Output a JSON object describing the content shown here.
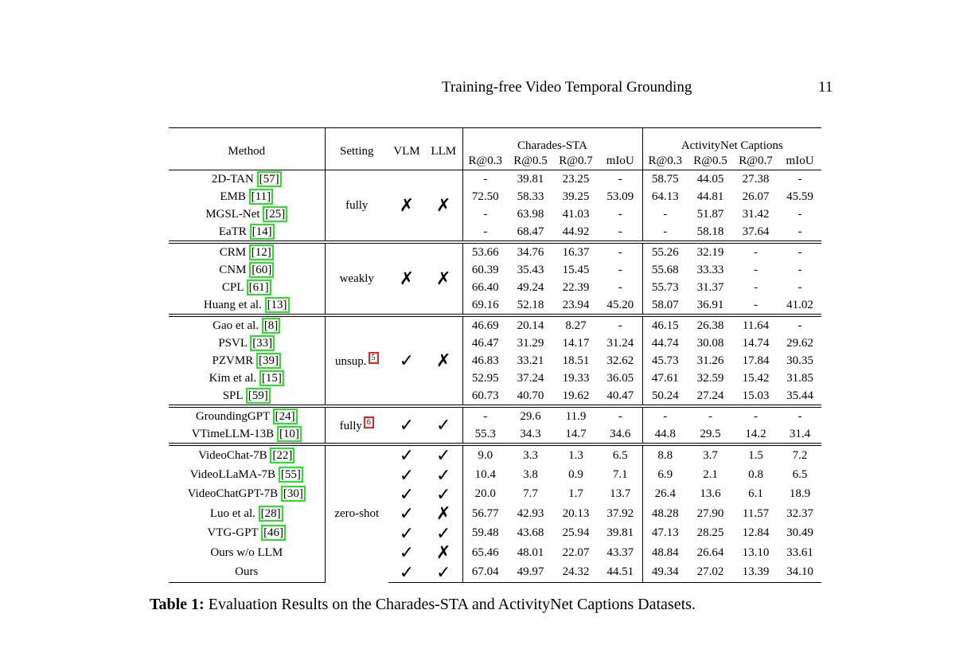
{
  "header": {
    "title": "Training-free Video Temporal Grounding",
    "page": "11"
  },
  "table": {
    "columns": {
      "method": "Method",
      "setting": "Setting",
      "vlm": "VLM",
      "llm": "LLM"
    },
    "groups": [
      {
        "name": "Charades-STA",
        "metrics": [
          "R@0.3",
          "R@0.5",
          "R@0.7",
          "mIoU"
        ]
      },
      {
        "name": "ActivityNet Captions",
        "metrics": [
          "R@0.3",
          "R@0.5",
          "R@0.7",
          "mIoU"
        ]
      }
    ],
    "sections": [
      {
        "setting": "fully",
        "vlm": "✗",
        "llm": "✗",
        "rows": [
          {
            "method": "2D-TAN",
            "ref": "[57]",
            "values": [
              "-",
              "39.81",
              "23.25",
              "-",
              "58.75",
              "44.05",
              "27.38",
              "-"
            ],
            "bold": []
          },
          {
            "method": "EMB",
            "ref": "[11]",
            "values": [
              "72.50",
              "58.33",
              "39.25",
              "53.09",
              "64.13",
              "44.81",
              "26.07",
              "45.59"
            ],
            "bold": [
              0,
              3,
              4,
              7
            ]
          },
          {
            "method": "MGSL-Net",
            "ref": "[25]",
            "values": [
              "-",
              "63.98",
              "41.03",
              "-",
              "-",
              "51.87",
              "31.42",
              "-"
            ],
            "bold": []
          },
          {
            "method": "EaTR",
            "ref": "[14]",
            "values": [
              "-",
              "68.47",
              "44.92",
              "-",
              "-",
              "58.18",
              "37.64",
              "-"
            ],
            "bold": [
              1,
              2,
              5,
              6
            ]
          }
        ]
      },
      {
        "setting": "weakly",
        "vlm": "✗",
        "llm": "✗",
        "rows": [
          {
            "method": "CRM",
            "ref": "[12]",
            "values": [
              "53.66",
              "34.76",
              "16.37",
              "-",
              "55.26",
              "32.19",
              "-",
              "-"
            ],
            "bold": []
          },
          {
            "method": "CNM",
            "ref": "[60]",
            "values": [
              "60.39",
              "35.43",
              "15.45",
              "-",
              "55.68",
              "33.33",
              "-",
              "-"
            ],
            "bold": []
          },
          {
            "method": "CPL",
            "ref": "[61]",
            "values": [
              "66.40",
              "49.24",
              "22.39",
              "-",
              "55.73",
              "31.37",
              "-",
              "-"
            ],
            "bold": []
          },
          {
            "method": "Huang et al.",
            "ref": "[13]",
            "values": [
              "69.16",
              "52.18",
              "23.94",
              "45.20",
              "58.07",
              "36.91",
              "-",
              "41.02"
            ],
            "bold": [
              0,
              1,
              2,
              3,
              4,
              5,
              7
            ]
          }
        ]
      },
      {
        "setting": "unsup.",
        "setting_ref": "5",
        "vlm": "✓",
        "llm": "✗",
        "rows": [
          {
            "method": "Gao et al.",
            "ref": "[8]",
            "values": [
              "46.69",
              "20.14",
              "8.27",
              "-",
              "46.15",
              "26.38",
              "11.64",
              "-"
            ],
            "bold": []
          },
          {
            "method": "PSVL",
            "ref": "[33]",
            "values": [
              "46.47",
              "31.29",
              "14.17",
              "31.24",
              "44.74",
              "30.08",
              "14.74",
              "29.62"
            ],
            "bold": []
          },
          {
            "method": "PZVMR",
            "ref": "[39]",
            "values": [
              "46.83",
              "33.21",
              "18.51",
              "32.62",
              "45.73",
              "31.26",
              "17.84",
              "30.35"
            ],
            "bold": [
              6
            ]
          },
          {
            "method": "Kim et al.",
            "ref": "[15]",
            "values": [
              "52.95",
              "37.24",
              "19.33",
              "36.05",
              "47.61",
              "32.59",
              "15.42",
              "31.85"
            ],
            "bold": [
              5
            ]
          },
          {
            "method": "SPL",
            "ref": "[59]",
            "values": [
              "60.73",
              "40.70",
              "19.62",
              "40.47",
              "50.24",
              "27.24",
              "15.03",
              "35.44"
            ],
            "bold": [
              0,
              1,
              2,
              3,
              4,
              7
            ]
          }
        ]
      },
      {
        "setting": "fully",
        "setting_ref": "6",
        "vlm": "✓",
        "llm": "✓",
        "rows": [
          {
            "method": "GroundingGPT",
            "ref": "[24]",
            "values": [
              "-",
              "29.6",
              "11.9",
              "-",
              "-",
              "-",
              "-",
              "-"
            ],
            "bold": []
          },
          {
            "method": "VTimeLLM-13B",
            "ref": "[10]",
            "values": [
              "55.3",
              "34.3",
              "14.7",
              "34.6",
              "44.8",
              "29.5",
              "14.2",
              "31.4"
            ],
            "bold": [
              0,
              1,
              2,
              3,
              4,
              5,
              6,
              7
            ]
          }
        ]
      },
      {
        "setting": "zero-shot",
        "rows": [
          {
            "method": "VideoChat-7B",
            "ref": "[22]",
            "vlm": "✓",
            "llm": "✓",
            "values": [
              "9.0",
              "3.3",
              "1.3",
              "6.5",
              "8.8",
              "3.7",
              "1.5",
              "7.2"
            ],
            "bold": []
          },
          {
            "method": "VideoLLaMA-7B",
            "ref": "[55]",
            "vlm": "✓",
            "llm": "✓",
            "values": [
              "10.4",
              "3.8",
              "0.9",
              "7.1",
              "6.9",
              "2.1",
              "0.8",
              "6.5"
            ],
            "bold": []
          },
          {
            "method": "VideoChatGPT-7B",
            "ref": "[30]",
            "vlm": "✓",
            "llm": "✓",
            "values": [
              "20.0",
              "7.7",
              "1.7",
              "13.7",
              "26.4",
              "13.6",
              "6.1",
              "18.9"
            ],
            "bold": []
          },
          {
            "method": "Luo et al.",
            "ref": "[28]",
            "vlm": "✓",
            "llm": "✗",
            "values": [
              "56.77",
              "42.93",
              "20.13",
              "37.92",
              "48.28",
              "27.90",
              "11.57",
              "32.37"
            ],
            "bold": []
          },
          {
            "method": "VTG-GPT",
            "ref": "[46]",
            "vlm": "✓",
            "llm": "✓",
            "values": [
              "59.48",
              "43.68",
              "25.94",
              "39.81",
              "47.13",
              "28.25",
              "12.84",
              "30.49"
            ],
            "bold": [
              2
            ]
          },
          {
            "method": "Ours w/o LLM",
            "vlm": "✓",
            "llm": "✗",
            "values": [
              "65.46",
              "48.01",
              "22.07",
              "43.37",
              "48.84",
              "26.64",
              "13.10",
              "33.61"
            ],
            "bold": []
          },
          {
            "method": "Ours",
            "vlm": "✓",
            "llm": "✓",
            "values": [
              "67.04",
              "49.97",
              "24.32",
              "44.51",
              "49.34",
              "27.02",
              "13.39",
              "34.10"
            ],
            "bold": [
              0,
              1,
              3,
              4,
              5,
              6,
              7
            ]
          }
        ]
      }
    ]
  },
  "caption": {
    "label": "Table 1:",
    "text": "Evaluation Results on the Charades-STA and ActivityNet Captions Datasets."
  }
}
